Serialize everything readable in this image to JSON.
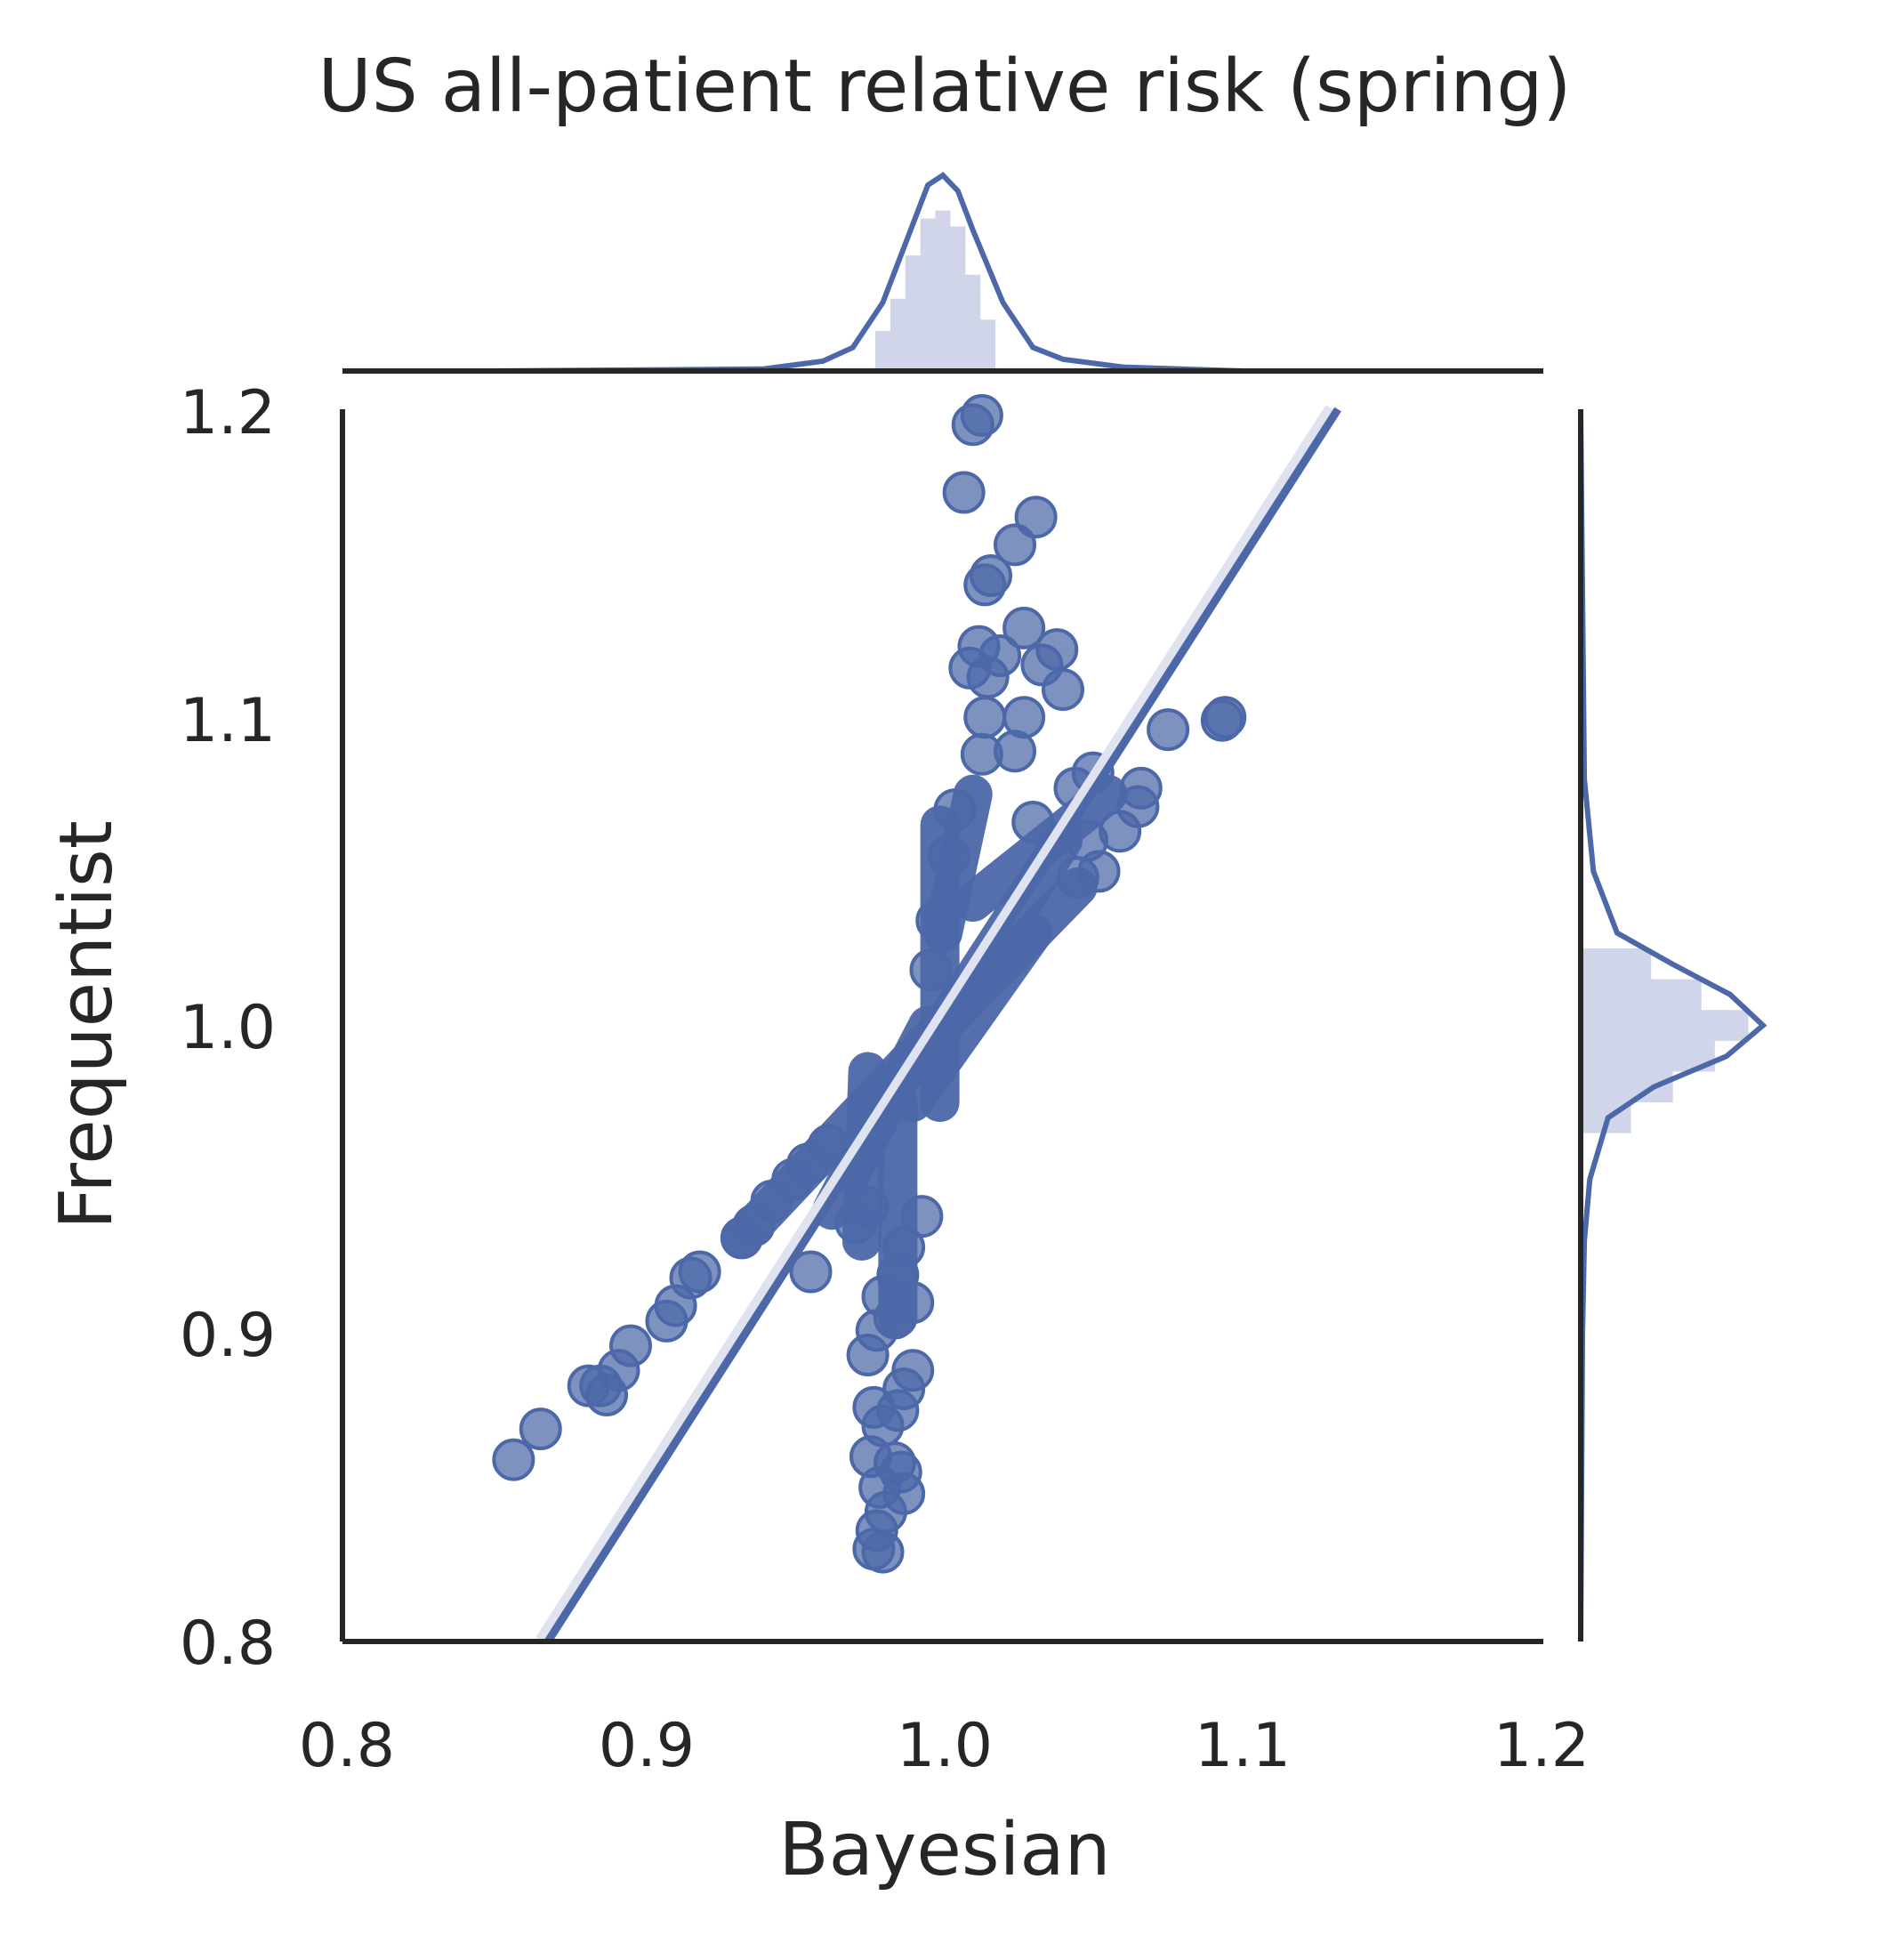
{
  "chart_data": {
    "type": "scatter",
    "title": "US all-patient relative risk (spring)",
    "xlabel": "Bayesian",
    "ylabel": "Frequentist",
    "xlim": [
      0.8,
      1.2
    ],
    "ylim": [
      0.8,
      1.2
    ],
    "xticks": [
      "0.8",
      "0.9",
      "1.0",
      "1.1",
      "1.2"
    ],
    "yticks": [
      "0.8",
      "0.9",
      "1.0",
      "1.1",
      "1.2"
    ],
    "grid": false,
    "legend": "none",
    "colors": {
      "points": "#4c68a8",
      "line": "#4c68a8",
      "axes": "#262626",
      "hist": "#c5cbe3"
    },
    "regression_line": {
      "slope": 1.52,
      "intercept": -0.52
    },
    "series": [
      {
        "points": [
          [
            1.013,
            1.198
          ],
          [
            1.01,
            1.195
          ],
          [
            1.007,
            1.173
          ],
          [
            1.031,
            1.165
          ],
          [
            1.024,
            1.156
          ],
          [
            1.016,
            1.146
          ],
          [
            1.014,
            1.143
          ],
          [
            1.027,
            1.129
          ],
          [
            1.012,
            1.123
          ],
          [
            1.019,
            1.12
          ],
          [
            1.038,
            1.122
          ],
          [
            1.033,
            1.117
          ],
          [
            1.04,
            1.109
          ],
          [
            1.015,
            1.113
          ],
          [
            1.009,
            1.116
          ],
          [
            1.014,
            1.1
          ],
          [
            1.027,
            1.1
          ],
          [
            1.013,
            1.088
          ],
          [
            1.024,
            1.089
          ],
          [
            1.075,
            1.096
          ],
          [
            1.093,
            1.099
          ],
          [
            1.094,
            1.1
          ],
          [
            1.066,
            1.077
          ],
          [
            1.065,
            1.071
          ],
          [
            1.059,
            1.063
          ],
          [
            1.05,
            1.082
          ],
          [
            1.044,
            1.077
          ],
          [
            1.048,
            1.06
          ],
          [
            1.052,
            1.05
          ],
          [
            1.045,
            1.048
          ],
          [
            1.03,
            1.066
          ],
          [
            1.004,
            1.07
          ],
          [
            1.002,
            1.055
          ],
          [
            0.998,
            1.034
          ],
          [
            0.996,
            1.018
          ],
          [
            0.933,
            0.931
          ],
          [
            0.937,
            0.935
          ],
          [
            0.943,
            0.943
          ],
          [
            0.95,
            0.95
          ],
          [
            0.955,
            0.955
          ],
          [
            0.962,
            0.961
          ],
          [
            0.919,
            0.92
          ],
          [
            0.916,
            0.918
          ],
          [
            0.911,
            0.909
          ],
          [
            0.908,
            0.904
          ],
          [
            0.896,
            0.896
          ],
          [
            0.892,
            0.888
          ],
          [
            0.882,
            0.883
          ],
          [
            0.886,
            0.883
          ],
          [
            0.888,
            0.88
          ],
          [
            0.866,
            0.869
          ],
          [
            0.857,
            0.859
          ],
          [
            0.975,
            0.941
          ],
          [
            0.971,
            0.936
          ],
          [
            0.956,
            0.92
          ],
          [
            0.993,
            0.938
          ],
          [
            0.987,
            0.928
          ],
          [
            0.985,
            0.919
          ],
          [
            0.98,
            0.912
          ],
          [
            0.984,
            0.905
          ],
          [
            0.99,
            0.91
          ],
          [
            0.978,
            0.901
          ],
          [
            0.975,
            0.893
          ],
          [
            0.99,
            0.888
          ],
          [
            0.987,
            0.882
          ],
          [
            0.985,
            0.875
          ],
          [
            0.977,
            0.876
          ],
          [
            0.98,
            0.87
          ],
          [
            0.976,
            0.86
          ],
          [
            0.984,
            0.858
          ],
          [
            0.986,
            0.855
          ],
          [
            0.987,
            0.848
          ],
          [
            0.979,
            0.85
          ],
          [
            0.981,
            0.842
          ],
          [
            0.978,
            0.836
          ],
          [
            0.977,
            0.83
          ],
          [
            0.98,
            0.829
          ]
        ]
      }
    ],
    "dense_core": [
      {
        "from": [
          0.933,
          0.931
        ],
        "to": [
          0.992,
          0.992
        ]
      },
      {
        "from": [
          0.992,
          0.992
        ],
        "to": [
          1.045,
          1.045
        ]
      },
      {
        "from": [
          0.999,
          0.975
        ],
        "to": [
          0.999,
          1.065
        ]
      },
      {
        "from": [
          0.985,
          0.905
        ],
        "to": [
          0.985,
          0.975
        ]
      },
      {
        "from": [
          0.973,
          0.93
        ],
        "to": [
          0.975,
          0.985
        ]
      },
      {
        "from": [
          1.0,
          1.0
        ],
        "to": [
          1.04,
          1.06
        ]
      },
      {
        "from": [
          0.99,
          0.975
        ],
        "to": [
          1.03,
          1.03
        ]
      },
      {
        "from": [
          1.0,
          1.03
        ],
        "to": [
          1.01,
          1.075
        ]
      },
      {
        "from": [
          1.01,
          1.04
        ],
        "to": [
          1.055,
          1.075
        ]
      },
      {
        "from": [
          0.963,
          0.94
        ],
        "to": [
          0.995,
          1.0
        ]
      }
    ],
    "marginal_x": {
      "bins": [
        0.98,
        0.985,
        0.99,
        0.995,
        1.0,
        1.005,
        1.01,
        1.015
      ],
      "density": [
        0.25,
        0.45,
        0.72,
        0.95,
        1.0,
        0.9,
        0.6,
        0.32
      ],
      "kde": [
        [
          0.85,
          0.0
        ],
        [
          0.94,
          0.01
        ],
        [
          0.96,
          0.05
        ],
        [
          0.97,
          0.12
        ],
        [
          0.98,
          0.35
        ],
        [
          0.99,
          0.75
        ],
        [
          0.995,
          0.95
        ],
        [
          1.0,
          1.0
        ],
        [
          1.005,
          0.92
        ],
        [
          1.01,
          0.72
        ],
        [
          1.02,
          0.35
        ],
        [
          1.03,
          0.12
        ],
        [
          1.04,
          0.06
        ],
        [
          1.06,
          0.02
        ],
        [
          1.1,
          0.0
        ]
      ]
    },
    "marginal_y": {
      "bins": [
        0.97,
        0.98,
        0.99,
        1.0,
        1.01,
        1.02
      ],
      "density": [
        0.3,
        0.55,
        0.8,
        1.0,
        0.72,
        0.42
      ],
      "kde": [
        [
          0.8,
          0.0
        ],
        [
          0.9,
          0.01
        ],
        [
          0.93,
          0.02
        ],
        [
          0.95,
          0.05
        ],
        [
          0.97,
          0.15
        ],
        [
          0.98,
          0.4
        ],
        [
          0.99,
          0.8
        ],
        [
          1.0,
          1.0
        ],
        [
          1.01,
          0.82
        ],
        [
          1.02,
          0.5
        ],
        [
          1.03,
          0.2
        ],
        [
          1.05,
          0.07
        ],
        [
          1.08,
          0.02
        ],
        [
          1.2,
          0.0
        ]
      ]
    }
  }
}
